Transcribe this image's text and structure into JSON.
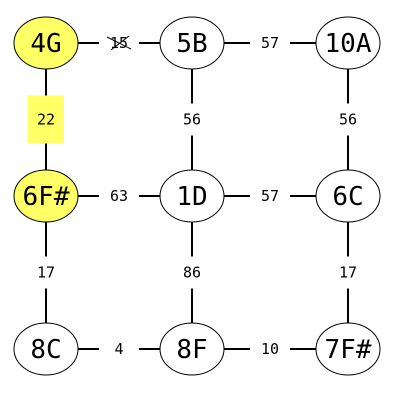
{
  "colors": {
    "highlight": "#ffff66",
    "node_fill": "#ffffff",
    "stroke": "#000000",
    "text": "#000000"
  },
  "nodes": [
    {
      "id": "4G",
      "label": "4G",
      "highlighted": true
    },
    {
      "id": "5B",
      "label": "5B",
      "highlighted": false
    },
    {
      "id": "10A",
      "label": "10A",
      "highlighted": false
    },
    {
      "id": "6F#",
      "label": "6F#",
      "highlighted": true
    },
    {
      "id": "1D",
      "label": "1D",
      "highlighted": false
    },
    {
      "id": "6C",
      "label": "6C",
      "highlighted": false
    },
    {
      "id": "8C",
      "label": "8C",
      "highlighted": false
    },
    {
      "id": "8F",
      "label": "8F",
      "highlighted": false
    },
    {
      "id": "7F#",
      "label": "7F#",
      "highlighted": false
    }
  ],
  "edges": [
    {
      "from": "4G",
      "to": "5B",
      "weight": "15",
      "struck_out": true,
      "highlighted": false
    },
    {
      "from": "5B",
      "to": "10A",
      "weight": "57",
      "struck_out": false,
      "highlighted": false
    },
    {
      "from": "4G",
      "to": "6F#",
      "weight": "22",
      "struck_out": false,
      "highlighted": true
    },
    {
      "from": "5B",
      "to": "1D",
      "weight": "56",
      "struck_out": false,
      "highlighted": false
    },
    {
      "from": "10A",
      "to": "6C",
      "weight": "56",
      "struck_out": false,
      "highlighted": false
    },
    {
      "from": "6F#",
      "to": "1D",
      "weight": "63",
      "struck_out": false,
      "highlighted": false
    },
    {
      "from": "1D",
      "to": "6C",
      "weight": "57",
      "struck_out": false,
      "highlighted": false
    },
    {
      "from": "6F#",
      "to": "8C",
      "weight": "17",
      "struck_out": false,
      "highlighted": false
    },
    {
      "from": "1D",
      "to": "8F",
      "weight": "86",
      "struck_out": false,
      "highlighted": false
    },
    {
      "from": "6C",
      "to": "7F#",
      "weight": "17",
      "struck_out": false,
      "highlighted": false
    },
    {
      "from": "8C",
      "to": "8F",
      "weight": "4",
      "struck_out": false,
      "highlighted": false
    },
    {
      "from": "8F",
      "to": "7F#",
      "weight": "10",
      "struck_out": false,
      "highlighted": false
    }
  ]
}
